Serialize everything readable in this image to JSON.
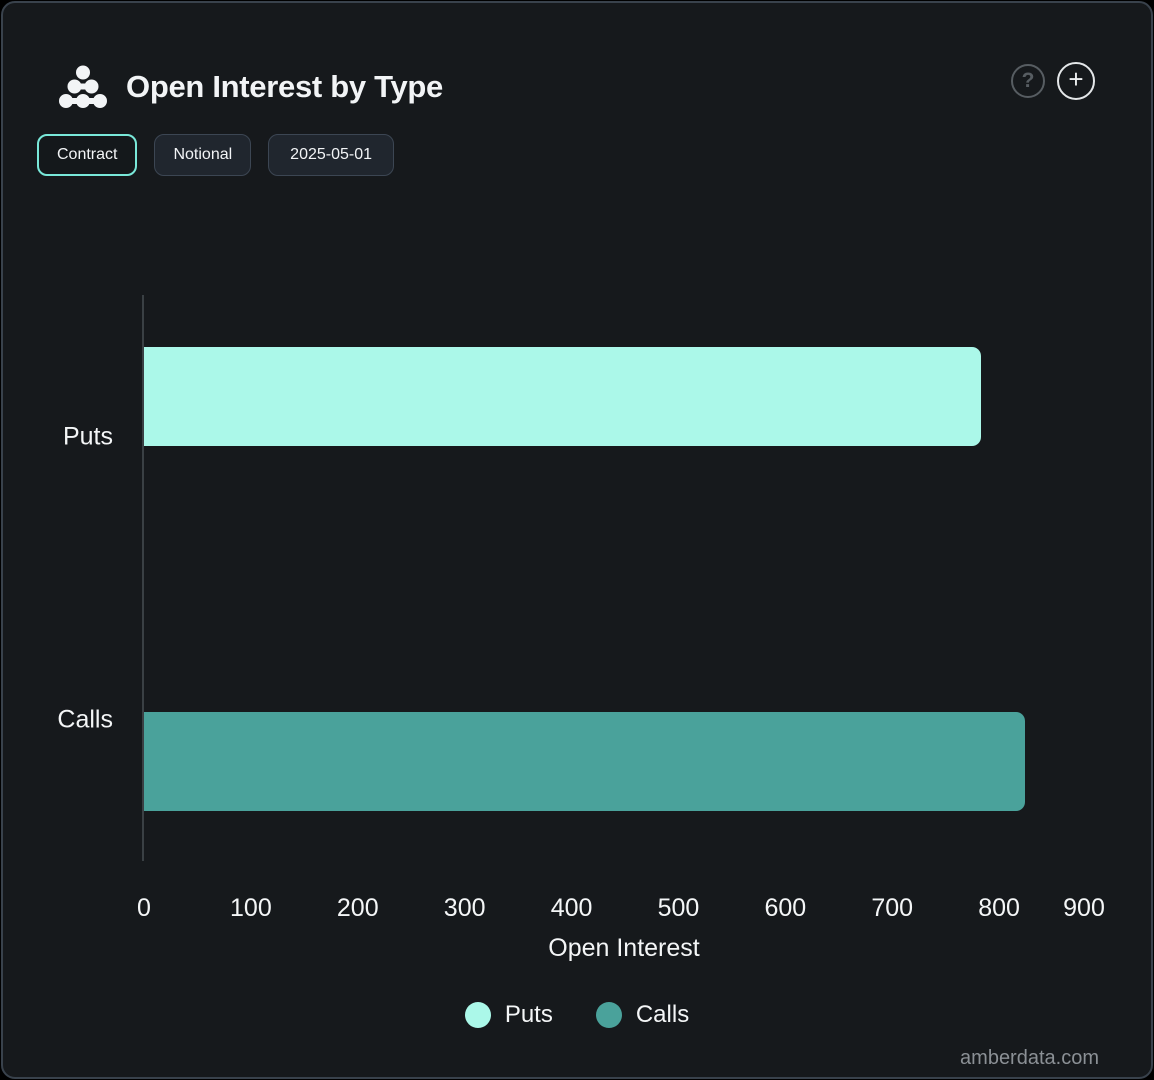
{
  "header": {
    "title": "Open Interest by Type",
    "help_glyph": "?",
    "add_glyph": "+"
  },
  "toolbar": {
    "buttons": [
      {
        "label": "Contract",
        "active": true
      },
      {
        "label": "Notional",
        "active": false
      },
      {
        "label": "2025-05-01",
        "active": false
      }
    ]
  },
  "chart_data": {
    "type": "bar",
    "orientation": "horizontal",
    "title": "Open Interest by Type",
    "categories": [
      "Puts",
      "Calls"
    ],
    "series": [
      {
        "name": "Puts",
        "color": "#abf8e9",
        "values": [
          783,
          0
        ]
      },
      {
        "name": "Calls",
        "color": "#4aa29b",
        "values": [
          0,
          824
        ]
      }
    ],
    "xlabel": "Open Interest",
    "xlim": [
      0,
      900
    ],
    "xticks": [
      0,
      100,
      200,
      300,
      400,
      500,
      600,
      700,
      800,
      900
    ],
    "grid": false,
    "legend_position": "bottom"
  },
  "colors": {
    "background": "#16191c",
    "card_border": "#39424c",
    "accent": "#79e8d9",
    "axis_line": "#3a4044",
    "text": "#f4f6f7",
    "watermark": "#8b9095"
  },
  "footer": {
    "watermark": "amberdata.com"
  }
}
